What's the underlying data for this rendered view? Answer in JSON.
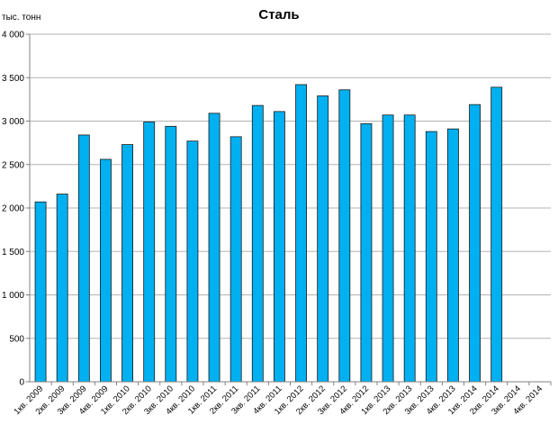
{
  "chart_data": {
    "type": "bar",
    "title": "Сталь",
    "ylabel": "тыс. тонн",
    "xlabel": "",
    "ylim": [
      0,
      4000
    ],
    "yticks": [
      0,
      500,
      1000,
      1500,
      2000,
      2500,
      3000,
      3500,
      4000
    ],
    "ytick_labels": [
      "0",
      "500",
      "1 000",
      "1 500",
      "2 000",
      "2 500",
      "3 000",
      "3 500",
      "4 000"
    ],
    "grid": true,
    "legend": "none",
    "bar_color": "#00b0f0",
    "categories": [
      "1кв. 2009",
      "2кв. 2009",
      "3кв. 2009",
      "4кв. 2009",
      "1кв. 2010",
      "2кв. 2010",
      "3кв. 2010",
      "4кв. 2010",
      "1кв. 2011",
      "2кв. 2011",
      "3кв. 2011",
      "4кв. 2011",
      "1кв. 2012",
      "2кв. 2012",
      "3кв. 2012",
      "4кв. 2012",
      "1кв. 2013",
      "2кв. 2013",
      "3кв. 2013",
      "4кв. 2013",
      "1кв. 2014",
      "2кв. 2014",
      "3кв. 2014",
      "4кв. 2014"
    ],
    "values": [
      2070,
      2160,
      2840,
      2560,
      2730,
      2990,
      2940,
      2770,
      3090,
      2820,
      3180,
      3110,
      3420,
      3290,
      3360,
      2970,
      3070,
      3070,
      2880,
      2910,
      3190,
      3390,
      null,
      null
    ]
  }
}
